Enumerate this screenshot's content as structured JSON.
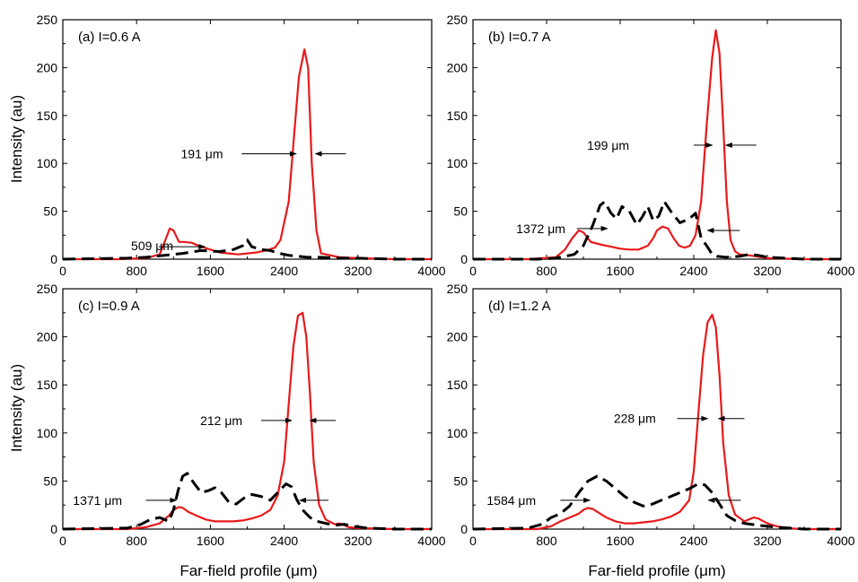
{
  "figure": {
    "ylabel": "Intensity (au)",
    "xlabel": "Far-field profile (μm)"
  },
  "chart_data": [
    {
      "type": "line",
      "panel_label": "(a) I=0.6 A",
      "xlim": [
        0,
        4000
      ],
      "ylim": [
        0,
        250
      ],
      "xticks": [
        "0",
        "800",
        "1600",
        "2400",
        "3200",
        "4000"
      ],
      "yticks": [
        "0",
        "50",
        "100",
        "150",
        "200",
        "250"
      ],
      "series": [
        {
          "style": "solid",
          "color": "#e8191a",
          "x": [
            0,
            600,
            900,
            1050,
            1120,
            1160,
            1200,
            1260,
            1320,
            1400,
            1500,
            1600,
            1700,
            1800,
            1900,
            2000,
            2100,
            2200,
            2300,
            2360,
            2400,
            2450,
            2500,
            2560,
            2620,
            2660,
            2700,
            2750,
            2800,
            2900,
            3000,
            3200,
            3600,
            4000
          ],
          "y": [
            0,
            0,
            1,
            5,
            22,
            32,
            30,
            18,
            18,
            17,
            13,
            10,
            7,
            6,
            5,
            6,
            7,
            9,
            12,
            20,
            38,
            60,
            120,
            190,
            219,
            200,
            100,
            30,
            6,
            4,
            2,
            1,
            0,
            0
          ]
        },
        {
          "style": "dashed",
          "color": "#000000",
          "x": [
            0,
            700,
            900,
            1100,
            1300,
            1500,
            1700,
            1850,
            1950,
            2000,
            2050,
            2150,
            2250,
            2350,
            2450,
            2550,
            2650,
            2800,
            3000,
            3200,
            3600,
            4000
          ],
          "y": [
            0,
            1,
            2,
            4,
            6,
            9,
            8,
            10,
            14,
            20,
            13,
            10,
            9,
            6,
            4,
            3,
            2,
            2,
            1,
            1,
            0,
            0
          ]
        }
      ],
      "annotations": [
        {
          "text": "191 μm",
          "x": 1280,
          "y": 110
        },
        {
          "text": "509 μm",
          "x": 740,
          "y": 14
        }
      ]
    },
    {
      "type": "line",
      "panel_label": "(b) I=0.7 A",
      "xlim": [
        0,
        4000
      ],
      "ylim": [
        0,
        250
      ],
      "xticks": [
        "0",
        "800",
        "1600",
        "2400",
        "3200",
        "4000"
      ],
      "yticks": [
        "0",
        "50",
        "100",
        "150",
        "200",
        "250"
      ],
      "series": [
        {
          "style": "solid",
          "color": "#e8191a",
          "x": [
            0,
            600,
            900,
            1000,
            1080,
            1150,
            1200,
            1280,
            1400,
            1500,
            1600,
            1700,
            1800,
            1900,
            1960,
            2000,
            2060,
            2120,
            2180,
            2240,
            2300,
            2360,
            2420,
            2480,
            2540,
            2600,
            2640,
            2680,
            2720,
            2760,
            2800,
            2850,
            2900,
            3000,
            3200,
            3600,
            4000
          ],
          "y": [
            0,
            0,
            2,
            10,
            22,
            30,
            28,
            18,
            15,
            13,
            11,
            10,
            10,
            14,
            22,
            30,
            34,
            32,
            22,
            14,
            12,
            14,
            25,
            60,
            140,
            210,
            239,
            215,
            140,
            60,
            20,
            8,
            5,
            4,
            1,
            0,
            0
          ]
        },
        {
          "style": "dashed",
          "color": "#000000",
          "x": [
            0,
            700,
            900,
            1100,
            1200,
            1300,
            1380,
            1430,
            1500,
            1560,
            1620,
            1700,
            1780,
            1840,
            1900,
            1960,
            2020,
            2080,
            2150,
            2250,
            2350,
            2420,
            2480,
            2540,
            2600,
            2650,
            2750,
            2900,
            3000,
            3100,
            3200,
            3400,
            3600,
            4000
          ],
          "y": [
            0,
            0,
            1,
            5,
            14,
            35,
            56,
            60,
            48,
            42,
            55,
            50,
            36,
            44,
            55,
            40,
            45,
            60,
            50,
            38,
            42,
            48,
            22,
            14,
            5,
            3,
            2,
            3,
            5,
            4,
            2,
            1,
            0,
            0
          ]
        }
      ],
      "annotations": [
        {
          "text": "199 μm",
          "x": 1240,
          "y": 119
        },
        {
          "text": "1372 μm",
          "x": 470,
          "y": 32
        }
      ]
    },
    {
      "type": "line",
      "panel_label": "(c) I=0.9 A",
      "xlim": [
        0,
        4000
      ],
      "ylim": [
        0,
        250
      ],
      "xticks": [
        "0",
        "800",
        "1600",
        "2400",
        "3200",
        "4000"
      ],
      "yticks": [
        "0",
        "50",
        "100",
        "150",
        "200",
        "250"
      ],
      "series": [
        {
          "style": "solid",
          "color": "#e8191a",
          "x": [
            0,
            700,
            900,
            1050,
            1150,
            1200,
            1260,
            1300,
            1360,
            1450,
            1550,
            1650,
            1750,
            1850,
            1950,
            2050,
            2150,
            2250,
            2330,
            2400,
            2450,
            2500,
            2550,
            2600,
            2640,
            2680,
            2720,
            2780,
            2850,
            2950,
            3000,
            3050,
            3100,
            3200,
            3600,
            4000
          ],
          "y": [
            0,
            0,
            2,
            6,
            14,
            20,
            23,
            22,
            18,
            14,
            10,
            8,
            8,
            8,
            9,
            11,
            14,
            20,
            35,
            70,
            130,
            190,
            222,
            225,
            200,
            140,
            70,
            25,
            10,
            5,
            6,
            4,
            2,
            1,
            0,
            0
          ]
        },
        {
          "style": "dashed",
          "color": "#000000",
          "x": [
            0,
            700,
            850,
            950,
            1050,
            1150,
            1200,
            1250,
            1300,
            1350,
            1420,
            1500,
            1580,
            1650,
            1720,
            1800,
            1880,
            1960,
            2050,
            2150,
            2250,
            2350,
            2420,
            2480,
            2540,
            2600,
            2680,
            2760,
            2850,
            2950,
            3050,
            3150,
            3300,
            3600,
            4000
          ],
          "y": [
            0,
            1,
            5,
            10,
            12,
            8,
            20,
            40,
            55,
            58,
            48,
            38,
            40,
            43,
            38,
            28,
            26,
            32,
            36,
            34,
            30,
            40,
            47,
            44,
            30,
            20,
            12,
            8,
            6,
            4,
            5,
            3,
            1,
            0,
            0
          ]
        }
      ],
      "annotations": [
        {
          "text": "212 μm",
          "x": 1490,
          "y": 113
        },
        {
          "text": "1371 μm",
          "x": 110,
          "y": 30
        }
      ]
    },
    {
      "type": "line",
      "panel_label": "(d) I=1.2 A",
      "xlim": [
        0,
        4000
      ],
      "ylim": [
        0,
        250
      ],
      "xticks": [
        "0",
        "800",
        "1600",
        "2400",
        "3200",
        "4000"
      ],
      "yticks": [
        "0",
        "50",
        "100",
        "150",
        "200",
        "250"
      ],
      "series": [
        {
          "style": "solid",
          "color": "#e8191a",
          "x": [
            0,
            700,
            850,
            950,
            1050,
            1150,
            1200,
            1250,
            1300,
            1350,
            1450,
            1550,
            1650,
            1750,
            1850,
            1950,
            2050,
            2150,
            2250,
            2350,
            2400,
            2450,
            2500,
            2550,
            2600,
            2640,
            2680,
            2720,
            2780,
            2850,
            2950,
            3050,
            3100,
            3200,
            3300,
            3400,
            3600,
            4000
          ],
          "y": [
            0,
            0,
            3,
            8,
            12,
            16,
            20,
            22,
            21,
            18,
            12,
            8,
            6,
            6,
            7,
            8,
            10,
            13,
            18,
            30,
            60,
            120,
            180,
            215,
            223,
            210,
            160,
            90,
            35,
            15,
            8,
            12,
            11,
            6,
            3,
            1,
            0,
            0
          ]
        },
        {
          "style": "dashed",
          "color": "#000000",
          "x": [
            0,
            600,
            750,
            850,
            950,
            1050,
            1150,
            1250,
            1350,
            1450,
            1550,
            1650,
            1750,
            1850,
            1950,
            2050,
            2150,
            2250,
            2350,
            2450,
            2520,
            2600,
            2680,
            2760,
            2850,
            2950,
            3100,
            3300,
            3600,
            4000
          ],
          "y": [
            0,
            1,
            5,
            12,
            16,
            24,
            38,
            50,
            55,
            50,
            42,
            34,
            28,
            24,
            26,
            30,
            34,
            38,
            42,
            47,
            46,
            38,
            26,
            14,
            9,
            6,
            4,
            2,
            0,
            0
          ]
        }
      ],
      "annotations": [
        {
          "text": "228 μm",
          "x": 1530,
          "y": 115
        },
        {
          "text": "1584 μm",
          "x": 150,
          "y": 30
        }
      ]
    }
  ]
}
